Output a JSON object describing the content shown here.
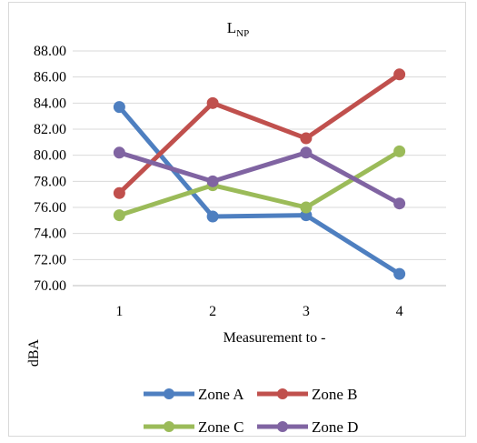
{
  "chart_data": {
    "type": "line",
    "title": "L",
    "title_subscript": "NP",
    "xlabel": "Measurement to -",
    "ylabel": "dBA",
    "categories": [
      "1",
      "2",
      "3",
      "4"
    ],
    "ylim": [
      70,
      88
    ],
    "y_ticks": [
      "70.00",
      "72.00",
      "74.00",
      "76.00",
      "78.00",
      "80.00",
      "82.00",
      "84.00",
      "86.00",
      "88.00"
    ],
    "grid": true,
    "legend_position": "bottom",
    "series": [
      {
        "name": "Zone A",
        "color": "#4e7fc0",
        "values": [
          83.7,
          75.3,
          75.4,
          70.9
        ]
      },
      {
        "name": "Zone B",
        "color": "#c0504d",
        "values": [
          77.1,
          84.0,
          81.3,
          86.2
        ]
      },
      {
        "name": "Zone C",
        "color": "#9bbb59",
        "values": [
          75.4,
          77.7,
          76.0,
          80.3
        ]
      },
      {
        "name": "Zone D",
        "color": "#8064a2",
        "values": [
          80.2,
          78.0,
          80.2,
          76.3
        ]
      }
    ]
  }
}
